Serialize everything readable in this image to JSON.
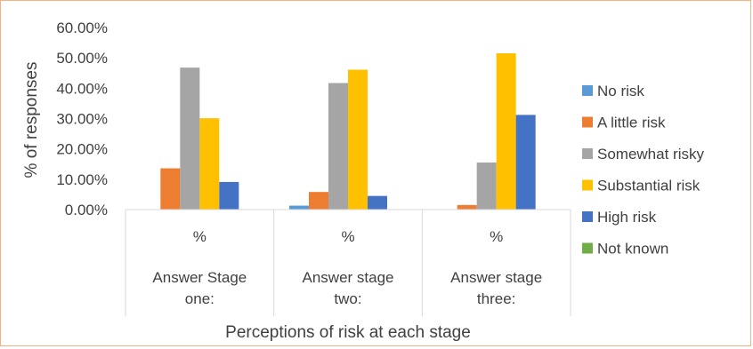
{
  "chart_data": {
    "type": "bar",
    "title": "",
    "xlabel": "Perceptions of risk at each stage",
    "ylabel": "% of responses",
    "ylim": [
      0,
      60
    ],
    "yticks": [
      0,
      10,
      20,
      30,
      40,
      50,
      60
    ],
    "ytick_labels": [
      "0.00%",
      "10.00%",
      "20.00%",
      "30.00%",
      "40.00%",
      "50.00%",
      "60.00%"
    ],
    "grid": false,
    "legend_position": "right",
    "categories": [
      {
        "top": "%",
        "line1": "Answer Stage",
        "line2": "one:"
      },
      {
        "top": "%",
        "line1": "Answer stage",
        "line2": "two:"
      },
      {
        "top": "%",
        "line1": "Answer stage",
        "line2": "three:"
      }
    ],
    "series": [
      {
        "name": "No risk",
        "color": "#5b9bd5",
        "values": [
          0,
          1.3,
          0
        ]
      },
      {
        "name": "A little risk",
        "color": "#ed7d31",
        "values": [
          13.6,
          5.8,
          1.5
        ]
      },
      {
        "name": "Somewhat risky",
        "color": "#a5a5a5",
        "values": [
          46.8,
          41.7,
          15.5
        ]
      },
      {
        "name": "Substantial risk",
        "color": "#ffc000",
        "values": [
          30.1,
          46.1,
          51.5
        ]
      },
      {
        "name": "High risk",
        "color": "#4472c4",
        "values": [
          9.1,
          4.5,
          31.2
        ]
      },
      {
        "name": "Not known",
        "color": "#70ad47",
        "values": [
          0,
          0,
          0
        ]
      }
    ]
  }
}
